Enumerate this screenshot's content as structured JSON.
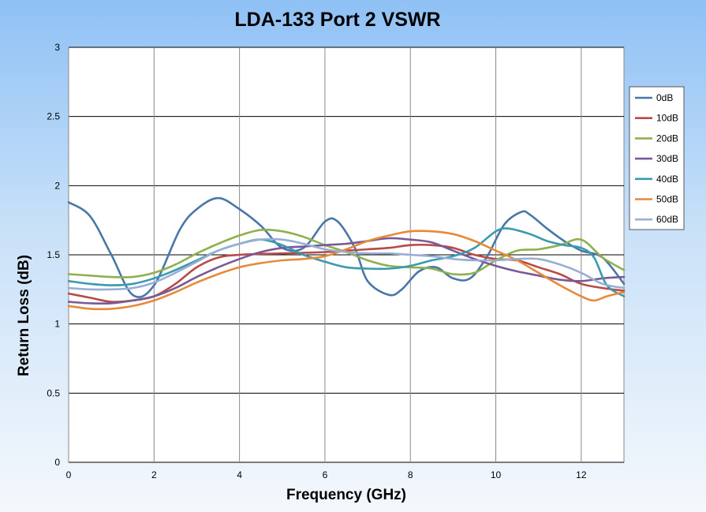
{
  "chart_data": {
    "type": "line",
    "title": "LDA-133 Port 2 VSWR",
    "xlabel": "Frequency (GHz)",
    "ylabel": "Return Loss (dB)",
    "xlim": [
      0,
      13
    ],
    "ylim": [
      0,
      3
    ],
    "x_ticks": [
      0,
      2,
      4,
      6,
      8,
      10,
      12
    ],
    "y_ticks": [
      0,
      0.5,
      1,
      1.5,
      2,
      2.5,
      3
    ],
    "x_tick_labels": [
      "0",
      "2",
      "4",
      "6",
      "8",
      "10",
      "12"
    ],
    "y_tick_labels": [
      "0",
      "0.5",
      "1",
      "1.5",
      "2",
      "2.5",
      "3"
    ],
    "grid": true,
    "legend_position": "right",
    "series": [
      {
        "name": "0dB",
        "color": "#4A76A8",
        "points": [
          [
            0,
            1.88
          ],
          [
            0.5,
            1.78
          ],
          [
            1.0,
            1.5
          ],
          [
            1.5,
            1.21
          ],
          [
            2.0,
            1.28
          ],
          [
            2.6,
            1.68
          ],
          [
            3.0,
            1.83
          ],
          [
            3.5,
            1.91
          ],
          [
            4.0,
            1.83
          ],
          [
            4.5,
            1.71
          ],
          [
            5.0,
            1.55
          ],
          [
            5.5,
            1.55
          ],
          [
            6.0,
            1.74
          ],
          [
            6.3,
            1.74
          ],
          [
            6.7,
            1.55
          ],
          [
            7.0,
            1.31
          ],
          [
            7.5,
            1.21
          ],
          [
            7.8,
            1.25
          ],
          [
            8.2,
            1.38
          ],
          [
            8.6,
            1.41
          ],
          [
            9.0,
            1.33
          ],
          [
            9.4,
            1.33
          ],
          [
            9.8,
            1.49
          ],
          [
            10.2,
            1.72
          ],
          [
            10.6,
            1.81
          ],
          [
            10.8,
            1.79
          ],
          [
            11.2,
            1.69
          ],
          [
            11.6,
            1.6
          ],
          [
            12.0,
            1.53
          ],
          [
            12.5,
            1.48
          ],
          [
            13.0,
            1.29
          ]
        ]
      },
      {
        "name": "10dB",
        "color": "#B94A48",
        "points": [
          [
            0,
            1.22
          ],
          [
            0.5,
            1.19
          ],
          [
            1.0,
            1.16
          ],
          [
            1.5,
            1.17
          ],
          [
            2.0,
            1.2
          ],
          [
            2.5,
            1.29
          ],
          [
            3.0,
            1.41
          ],
          [
            3.5,
            1.48
          ],
          [
            4.0,
            1.5
          ],
          [
            5.0,
            1.51
          ],
          [
            6.0,
            1.52
          ],
          [
            6.5,
            1.53
          ],
          [
            7.0,
            1.54
          ],
          [
            7.5,
            1.55
          ],
          [
            8.0,
            1.57
          ],
          [
            8.5,
            1.57
          ],
          [
            9.0,
            1.55
          ],
          [
            9.5,
            1.5
          ],
          [
            10.0,
            1.47
          ],
          [
            10.5,
            1.46
          ],
          [
            11.0,
            1.41
          ],
          [
            11.5,
            1.36
          ],
          [
            12.0,
            1.29
          ],
          [
            12.5,
            1.26
          ],
          [
            13.0,
            1.24
          ]
        ]
      },
      {
        "name": "20dB",
        "color": "#8FB04F",
        "points": [
          [
            0,
            1.36
          ],
          [
            0.5,
            1.35
          ],
          [
            1.0,
            1.34
          ],
          [
            1.5,
            1.34
          ],
          [
            2.0,
            1.37
          ],
          [
            2.5,
            1.43
          ],
          [
            3.0,
            1.51
          ],
          [
            3.5,
            1.58
          ],
          [
            4.0,
            1.64
          ],
          [
            4.5,
            1.68
          ],
          [
            5.0,
            1.67
          ],
          [
            5.5,
            1.63
          ],
          [
            6.0,
            1.57
          ],
          [
            6.5,
            1.52
          ],
          [
            7.0,
            1.46
          ],
          [
            7.5,
            1.42
          ],
          [
            8.0,
            1.41
          ],
          [
            8.5,
            1.4
          ],
          [
            9.0,
            1.36
          ],
          [
            9.5,
            1.37
          ],
          [
            10.0,
            1.46
          ],
          [
            10.5,
            1.53
          ],
          [
            11.0,
            1.54
          ],
          [
            11.5,
            1.57
          ],
          [
            12.0,
            1.61
          ],
          [
            12.5,
            1.48
          ],
          [
            13.0,
            1.39
          ]
        ]
      },
      {
        "name": "30dB",
        "color": "#7A5A96",
        "points": [
          [
            0,
            1.16
          ],
          [
            0.5,
            1.15
          ],
          [
            1.0,
            1.15
          ],
          [
            1.5,
            1.17
          ],
          [
            2.0,
            1.2
          ],
          [
            2.5,
            1.26
          ],
          [
            3.0,
            1.34
          ],
          [
            3.5,
            1.41
          ],
          [
            4.0,
            1.47
          ],
          [
            4.5,
            1.52
          ],
          [
            5.0,
            1.55
          ],
          [
            5.5,
            1.56
          ],
          [
            6.0,
            1.57
          ],
          [
            6.5,
            1.58
          ],
          [
            7.0,
            1.6
          ],
          [
            7.5,
            1.62
          ],
          [
            8.0,
            1.61
          ],
          [
            8.5,
            1.59
          ],
          [
            9.0,
            1.53
          ],
          [
            9.5,
            1.47
          ],
          [
            10.0,
            1.42
          ],
          [
            10.5,
            1.38
          ],
          [
            11.0,
            1.35
          ],
          [
            11.5,
            1.32
          ],
          [
            12.0,
            1.31
          ],
          [
            12.5,
            1.33
          ],
          [
            13.0,
            1.34
          ]
        ]
      },
      {
        "name": "40dB",
        "color": "#3A9AAE",
        "points": [
          [
            0,
            1.31
          ],
          [
            0.5,
            1.29
          ],
          [
            1.0,
            1.28
          ],
          [
            1.5,
            1.29
          ],
          [
            2.0,
            1.33
          ],
          [
            2.5,
            1.39
          ],
          [
            3.0,
            1.46
          ],
          [
            3.5,
            1.53
          ],
          [
            4.0,
            1.58
          ],
          [
            4.5,
            1.61
          ],
          [
            5.0,
            1.57
          ],
          [
            5.5,
            1.5
          ],
          [
            6.0,
            1.45
          ],
          [
            6.5,
            1.41
          ],
          [
            7.0,
            1.4
          ],
          [
            7.5,
            1.4
          ],
          [
            8.0,
            1.42
          ],
          [
            8.5,
            1.46
          ],
          [
            9.0,
            1.49
          ],
          [
            9.5,
            1.55
          ],
          [
            10.0,
            1.67
          ],
          [
            10.3,
            1.69
          ],
          [
            10.8,
            1.65
          ],
          [
            11.2,
            1.6
          ],
          [
            11.6,
            1.57
          ],
          [
            12.0,
            1.55
          ],
          [
            12.3,
            1.48
          ],
          [
            12.6,
            1.28
          ],
          [
            13.0,
            1.2
          ]
        ]
      },
      {
        "name": "50dB",
        "color": "#E68A3A",
        "points": [
          [
            0,
            1.13
          ],
          [
            0.5,
            1.11
          ],
          [
            1.0,
            1.11
          ],
          [
            1.5,
            1.13
          ],
          [
            2.0,
            1.17
          ],
          [
            2.5,
            1.23
          ],
          [
            3.0,
            1.3
          ],
          [
            3.5,
            1.36
          ],
          [
            4.0,
            1.41
          ],
          [
            4.5,
            1.44
          ],
          [
            5.0,
            1.46
          ],
          [
            5.5,
            1.47
          ],
          [
            6.0,
            1.49
          ],
          [
            6.5,
            1.54
          ],
          [
            7.0,
            1.6
          ],
          [
            7.5,
            1.64
          ],
          [
            8.0,
            1.67
          ],
          [
            8.5,
            1.67
          ],
          [
            9.0,
            1.65
          ],
          [
            9.5,
            1.6
          ],
          [
            10.0,
            1.53
          ],
          [
            10.5,
            1.46
          ],
          [
            11.0,
            1.37
          ],
          [
            11.5,
            1.28
          ],
          [
            12.0,
            1.2
          ],
          [
            12.3,
            1.17
          ],
          [
            12.6,
            1.2
          ],
          [
            13.0,
            1.23
          ]
        ]
      },
      {
        "name": "60dB",
        "color": "#98AFD3",
        "points": [
          [
            0,
            1.26
          ],
          [
            0.5,
            1.25
          ],
          [
            1.0,
            1.25
          ],
          [
            1.5,
            1.26
          ],
          [
            2.0,
            1.3
          ],
          [
            2.5,
            1.37
          ],
          [
            3.0,
            1.45
          ],
          [
            3.5,
            1.53
          ],
          [
            4.0,
            1.58
          ],
          [
            4.5,
            1.61
          ],
          [
            5.0,
            1.61
          ],
          [
            5.5,
            1.58
          ],
          [
            6.0,
            1.54
          ],
          [
            6.5,
            1.52
          ],
          [
            7.0,
            1.51
          ],
          [
            7.5,
            1.51
          ],
          [
            8.0,
            1.5
          ],
          [
            8.5,
            1.49
          ],
          [
            9.0,
            1.47
          ],
          [
            9.5,
            1.46
          ],
          [
            10.0,
            1.46
          ],
          [
            10.5,
            1.47
          ],
          [
            11.0,
            1.47
          ],
          [
            11.5,
            1.43
          ],
          [
            12.0,
            1.37
          ],
          [
            12.5,
            1.29
          ],
          [
            13.0,
            1.26
          ]
        ]
      }
    ]
  }
}
